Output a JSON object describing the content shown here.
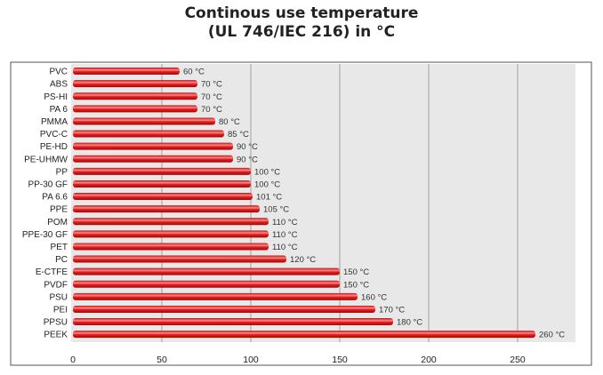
{
  "chart_data": {
    "type": "bar",
    "orientation": "horizontal",
    "title_line1": "Continous use temperature",
    "title_line2": "(UL 746/IEC 216) in °C",
    "categories": [
      "PVC",
      "ABS",
      "PS-HI",
      "PA 6",
      "PMMA",
      "PVC-C",
      "PE-HD",
      "PE-UHMW",
      "PP",
      "PP-30 GF",
      "PA 6.6",
      "PPE",
      "POM",
      "PPE-30 GF",
      "PET",
      "PC",
      "E-CTFE",
      "PVDF",
      "PSU",
      "PEI",
      "PPSU",
      "PEEK"
    ],
    "values": [
      60,
      70,
      70,
      70,
      80,
      85,
      90,
      90,
      100,
      100,
      101,
      105,
      110,
      110,
      110,
      120,
      150,
      150,
      160,
      170,
      180,
      260
    ],
    "value_labels": [
      "60 °C",
      "70 °C",
      "70 °C",
      "70 °C",
      "80 °C",
      "85 °C",
      "90 °C",
      "90 °C",
      "100 °C",
      "100 °C",
      "101 °C",
      "105 °C",
      "110 °C",
      "110 °C",
      "110 °C",
      "120 °C",
      "150 °C",
      "150 °C",
      "160 °C",
      "170 °C",
      "180 °C",
      "260 °C"
    ],
    "xticks": [
      0,
      50,
      100,
      150,
      200,
      250
    ],
    "xlim": [
      0,
      283
    ],
    "grid": true,
    "colors": {
      "bar": "#e02020",
      "bar_highlight": "#ff9a9a",
      "plot_bg": "#e8e8e8",
      "grid": "#a0a0a0"
    }
  }
}
